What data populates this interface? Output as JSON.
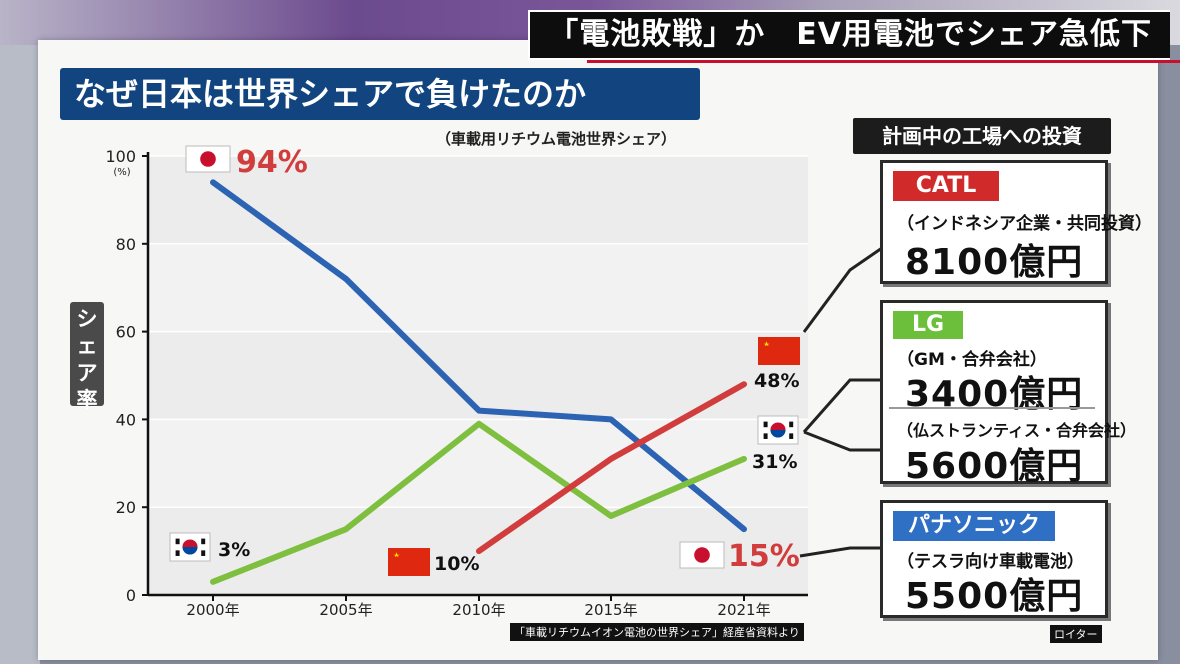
{
  "headline": "「電池敗戦」か　EV用電池でシェア急低下",
  "title": "なぜ日本は世界シェアで負けたのか",
  "colors": {
    "japan": "#2c63b3",
    "korea": "#7fbf3f",
    "china": "#d13c3c",
    "title_bg": "#12457f"
  },
  "chart_data": {
    "type": "line",
    "subtitle": "（車載用リチウム電池世界シェア）",
    "ylabel": "シェア率",
    "yunit": "(%)",
    "ylim": [
      0,
      100
    ],
    "yticks": [
      "100",
      "80",
      "60",
      "40",
      "20",
      "0"
    ],
    "x": [
      "2000年",
      "2005年",
      "2010年",
      "2015年",
      "2021年"
    ],
    "series": [
      {
        "country": "japan",
        "flag_icon": "japan-flag-icon",
        "values": [
          94,
          72,
          42,
          40,
          15
        ],
        "start_label": "94%",
        "end_label": "15%"
      },
      {
        "country": "korea",
        "flag_icon": "korea-flag-icon",
        "values": [
          3,
          15,
          39,
          18,
          31
        ],
        "start_label": "3%",
        "end_label": "31%"
      },
      {
        "country": "china",
        "flag_icon": "china-flag-icon",
        "values": [
          null,
          null,
          10,
          31,
          48
        ],
        "start_label": "10%",
        "end_label": "48%"
      }
    ],
    "source": "「車載リチウムイオン電池の世界シェア」経産省資料より"
  },
  "investment": {
    "header": "計画中の工場への投資",
    "catl": {
      "name": "CATL",
      "note": "（インドネシア企業・共同投資）",
      "amount": "8100億円",
      "color": "#d12a2a"
    },
    "lg": {
      "name": "LG",
      "note1": "（GM・合弁会社）",
      "amount1": "3400億円",
      "note2": "（仏ストランティス・合弁会社）",
      "amount2": "5600億円",
      "color": "#6cbf3a"
    },
    "panasonic": {
      "name": "パナソニック",
      "note": "（テスラ向け車載電池）",
      "amount": "5500億円",
      "color": "#2f6fc4"
    }
  },
  "credit": "ロイター"
}
